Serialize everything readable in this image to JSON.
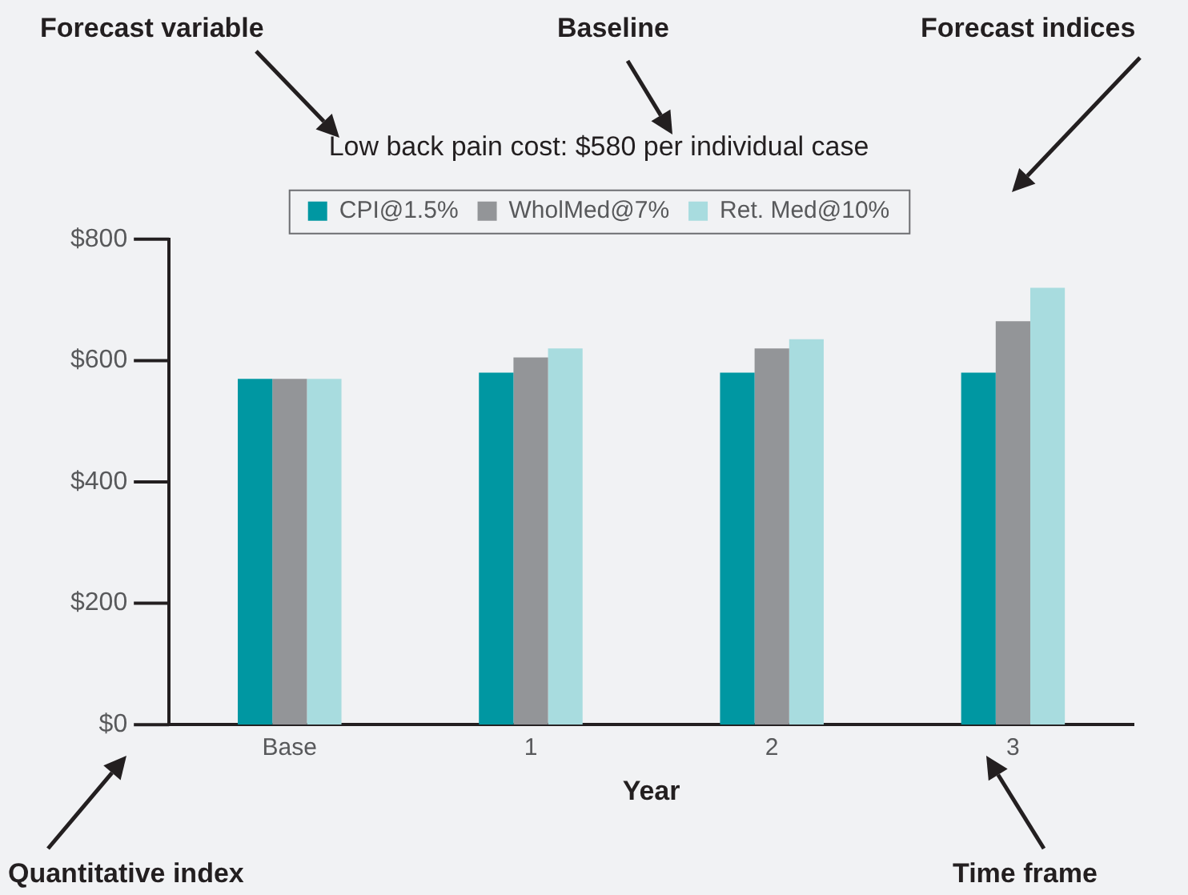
{
  "chart_data": {
    "type": "bar",
    "title": "Low back pain cost: $580 per individual case",
    "xlabel": "Year",
    "categories": [
      "Base",
      "1",
      "2",
      "3"
    ],
    "series": [
      {
        "name": "CPI@1.5%",
        "color": "#0097a2",
        "values": [
          570,
          580,
          580,
          580
        ]
      },
      {
        "name": "WholMed@7%",
        "color": "#939598",
        "values": [
          570,
          605,
          620,
          665
        ]
      },
      {
        "name": "Ret. Med@10%",
        "color": "#a8dcdf",
        "values": [
          570,
          620,
          635,
          720
        ]
      }
    ],
    "ylim": [
      0,
      800
    ],
    "yticks": [
      {
        "value": 0,
        "label": "$0"
      },
      {
        "value": 200,
        "label": "$200"
      },
      {
        "value": 400,
        "label": "$400"
      },
      {
        "value": 600,
        "label": "$600"
      },
      {
        "value": 800,
        "label": "$800"
      }
    ],
    "legend": "top",
    "annotations": [
      "Forecast variable",
      "Baseline",
      "Forecast indices",
      "Quantitative index",
      "Time frame"
    ]
  }
}
